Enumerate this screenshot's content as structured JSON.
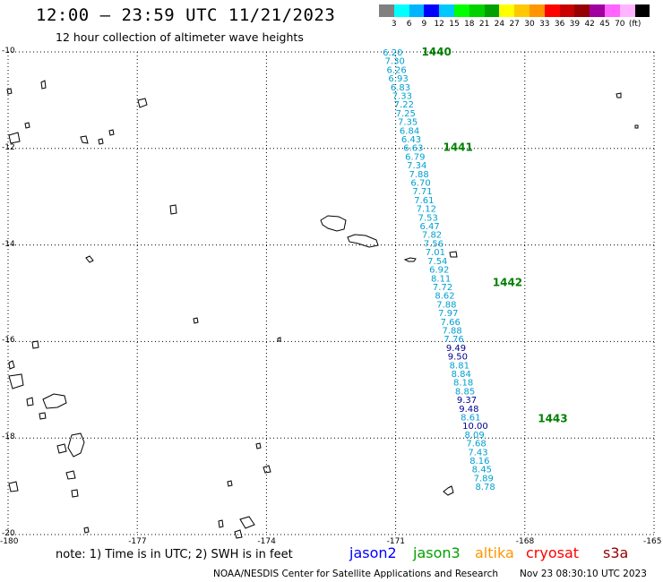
{
  "header": {
    "title": "12:00 – 23:59 UTC 11/21/2023",
    "subtitle": "12 hour collection of altimeter wave heights"
  },
  "colorbar": {
    "colors": [
      "#808080",
      "#00ffff",
      "#00b4ff",
      "#0000ff",
      "#00c8ff",
      "#00ff00",
      "#00d200",
      "#00a000",
      "#ffff00",
      "#ffc800",
      "#ff9600",
      "#ff0000",
      "#c80000",
      "#960000",
      "#a000a0",
      "#ff64ff",
      "#ffb4ff",
      "#000000"
    ],
    "labels": [
      "3",
      "6",
      "9",
      "12",
      "15",
      "18",
      "21",
      "24",
      "27",
      "30",
      "33",
      "36",
      "39",
      "42",
      "45",
      "70",
      "(ft)"
    ]
  },
  "axes": {
    "lat_labels": [
      "-10",
      "-12",
      "-14",
      "-16",
      "-18",
      "-20"
    ],
    "lon_labels": [
      "-180",
      "-177",
      "-174",
      "-171",
      "-168",
      "-165"
    ]
  },
  "track": {
    "points": [
      {
        "lon": -171.3,
        "lat": -10.0,
        "swh": "6.20"
      },
      {
        "lon": -171.25,
        "lat": -10.18,
        "swh": "7.30"
      },
      {
        "lon": -171.21,
        "lat": -10.36,
        "swh": "6.26"
      },
      {
        "lon": -171.17,
        "lat": -10.54,
        "swh": "6.93"
      },
      {
        "lon": -171.12,
        "lat": -10.72,
        "swh": "6.83"
      },
      {
        "lon": -171.08,
        "lat": -10.9,
        "swh": "7.33"
      },
      {
        "lon": -171.04,
        "lat": -11.08,
        "swh": "7.22"
      },
      {
        "lon": -171.0,
        "lat": -11.26,
        "swh": "7.25"
      },
      {
        "lon": -170.95,
        "lat": -11.44,
        "swh": "7.35"
      },
      {
        "lon": -170.91,
        "lat": -11.62,
        "swh": "6.84"
      },
      {
        "lon": -170.87,
        "lat": -11.8,
        "swh": "6.43"
      },
      {
        "lon": -170.82,
        "lat": -11.98,
        "swh": "6.63"
      },
      {
        "lon": -170.78,
        "lat": -12.16,
        "swh": "6.79"
      },
      {
        "lon": -170.74,
        "lat": -12.34,
        "swh": "7.34"
      },
      {
        "lon": -170.69,
        "lat": -12.52,
        "swh": "7.88"
      },
      {
        "lon": -170.65,
        "lat": -12.7,
        "swh": "6.70"
      },
      {
        "lon": -170.61,
        "lat": -12.88,
        "swh": "7.71"
      },
      {
        "lon": -170.57,
        "lat": -13.06,
        "swh": "7.61"
      },
      {
        "lon": -170.52,
        "lat": -13.24,
        "swh": "7.12"
      },
      {
        "lon": -170.48,
        "lat": -13.42,
        "swh": "7.53"
      },
      {
        "lon": -170.44,
        "lat": -13.6,
        "swh": "6.47"
      },
      {
        "lon": -170.39,
        "lat": -13.78,
        "swh": "7.82"
      },
      {
        "lon": -170.35,
        "lat": -13.96,
        "swh": "7.56"
      },
      {
        "lon": -170.31,
        "lat": -14.14,
        "swh": "7.01"
      },
      {
        "lon": -170.26,
        "lat": -14.32,
        "swh": "7.54"
      },
      {
        "lon": -170.22,
        "lat": -14.5,
        "swh": "6.92"
      },
      {
        "lon": -170.18,
        "lat": -14.68,
        "swh": "8.11"
      },
      {
        "lon": -170.14,
        "lat": -14.86,
        "swh": "7.72"
      },
      {
        "lon": -170.09,
        "lat": -15.04,
        "swh": "8.62"
      },
      {
        "lon": -170.05,
        "lat": -15.22,
        "swh": "7.88"
      },
      {
        "lon": -170.01,
        "lat": -15.4,
        "swh": "7.97"
      },
      {
        "lon": -169.96,
        "lat": -15.58,
        "swh": "7.66"
      },
      {
        "lon": -169.92,
        "lat": -15.76,
        "swh": "7.88"
      },
      {
        "lon": -169.88,
        "lat": -15.94,
        "swh": "7.76"
      },
      {
        "lon": -169.83,
        "lat": -16.12,
        "swh": "9.49"
      },
      {
        "lon": -169.79,
        "lat": -16.3,
        "swh": "9.50"
      },
      {
        "lon": -169.75,
        "lat": -16.48,
        "swh": "8.81"
      },
      {
        "lon": -169.71,
        "lat": -16.66,
        "swh": "8.84"
      },
      {
        "lon": -169.66,
        "lat": -16.84,
        "swh": "8.18"
      },
      {
        "lon": -169.62,
        "lat": -17.02,
        "swh": "8.85"
      },
      {
        "lon": -169.58,
        "lat": -17.2,
        "swh": "9.37"
      },
      {
        "lon": -169.53,
        "lat": -17.38,
        "swh": "9.48"
      },
      {
        "lon": -169.49,
        "lat": -17.56,
        "swh": "8.61"
      },
      {
        "lon": -169.45,
        "lat": -17.74,
        "swh": "10.00"
      },
      {
        "lon": -169.4,
        "lat": -17.92,
        "swh": "8.09"
      },
      {
        "lon": -169.36,
        "lat": -18.1,
        "swh": "7.68"
      },
      {
        "lon": -169.32,
        "lat": -18.28,
        "swh": "7.43"
      },
      {
        "lon": -169.28,
        "lat": -18.46,
        "swh": "8.16"
      },
      {
        "lon": -169.23,
        "lat": -18.64,
        "swh": "8.45"
      },
      {
        "lon": -169.19,
        "lat": -18.82,
        "swh": "7.89"
      },
      {
        "lon": -169.15,
        "lat": -19.0,
        "swh": "8.78"
      }
    ],
    "time_marks": [
      {
        "label": "1440",
        "lon": -170.4,
        "lat": -10.0
      },
      {
        "label": "1441",
        "lon": -169.9,
        "lat": -11.98
      },
      {
        "lon": -168.75,
        "lat": -14.78,
        "label": "1442"
      },
      {
        "lon": -167.7,
        "lat": -17.6,
        "label": "1443"
      }
    ],
    "color_light": "#00a0d0",
    "color_dark": "#000090",
    "time_color": "#008000"
  },
  "notes": {
    "note_text": "note: 1) Time is in UTC; 2) SWH is in feet",
    "satellites": [
      {
        "name": "jason2",
        "color": "#0000ff"
      },
      {
        "name": "jason3",
        "color": "#00a000"
      },
      {
        "name": "altika",
        "color": "#ff9600"
      },
      {
        "name": "cryosat",
        "color": "#ff0000"
      },
      {
        "name": "s3a",
        "color": "#960000"
      }
    ]
  },
  "footer": {
    "source": "NOAA/NESDIS Center for Satellite Applications and Research",
    "timestamp": "Nov 23 08:30:10 UTC 2023"
  }
}
